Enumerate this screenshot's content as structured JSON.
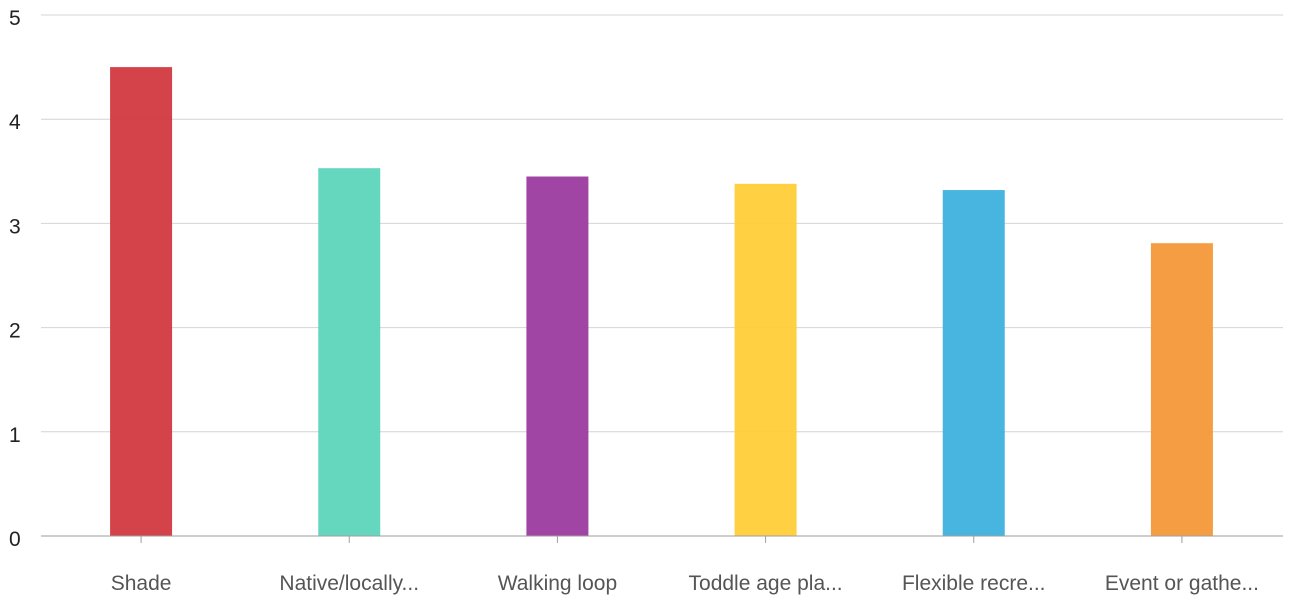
{
  "chart_data": {
    "type": "bar",
    "categories": [
      "Shade",
      "Native/locally...",
      "Walking loop",
      "Toddle age pla...",
      "Flexible recre...",
      "Event or gathe..."
    ],
    "values": [
      4.5,
      3.53,
      3.45,
      3.38,
      3.32,
      2.81
    ],
    "colors": [
      "#d1393f",
      "#5dd5bb",
      "#9b3b9e",
      "#fece38",
      "#3db1de",
      "#f49839"
    ],
    "y_ticks": [
      "0",
      "1",
      "2",
      "3",
      "4",
      "5"
    ],
    "ylim": [
      0,
      5
    ],
    "grid": true,
    "legend": "none"
  }
}
